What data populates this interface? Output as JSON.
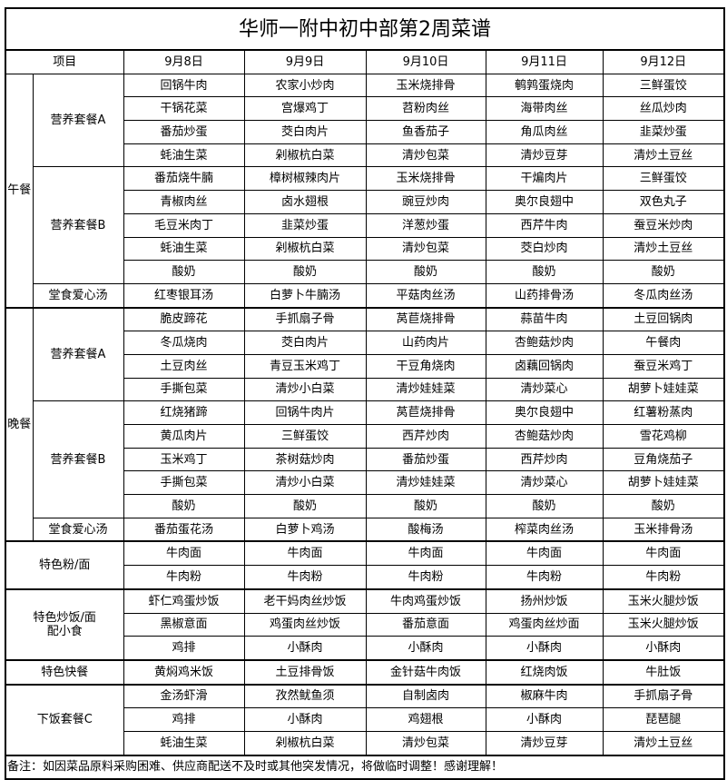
{
  "title": "华师一附中初中部第2周菜谱",
  "header": {
    "item": "项目",
    "dates": [
      "9月8日",
      "9月9日",
      "9月10日",
      "9月11日",
      "9月12日"
    ]
  },
  "meals": [
    {
      "label": "午餐",
      "groups": [
        {
          "label": "营养套餐A",
          "rows": [
            [
              "回锅牛肉",
              "农家小炒肉",
              "玉米烧排骨",
              "鹌鹑蛋烧肉",
              "三鲜蛋饺"
            ],
            [
              "干锅花菜",
              "宫爆鸡丁",
              "苕粉肉丝",
              "海带肉丝",
              "丝瓜炒肉"
            ],
            [
              "番茄炒蛋",
              "茭白肉片",
              "鱼香茄子",
              "角瓜肉丝",
              "韭菜炒蛋"
            ],
            [
              "蚝油生菜",
              "剁椒杭白菜",
              "清炒包菜",
              "清炒豆芽",
              "清炒土豆丝"
            ]
          ]
        },
        {
          "label": "营养套餐B",
          "rows": [
            [
              "番茄烧牛腩",
              "樟树椒辣肉片",
              "玉米烧排骨",
              "干煸肉片",
              "三鲜蛋饺"
            ],
            [
              "青椒肉丝",
              "卤水翅根",
              "豌豆炒肉",
              "奥尔良翅中",
              "双色丸子"
            ],
            [
              "毛豆米肉丁",
              "韭菜炒蛋",
              "洋葱炒蛋",
              "西芹牛肉",
              "蚕豆米炒肉"
            ],
            [
              "蚝油生菜",
              "剁椒杭白菜",
              "清炒包菜",
              "茭白炒肉",
              "清炒土豆丝"
            ],
            [
              "酸奶",
              "酸奶",
              "酸奶",
              "酸奶",
              "酸奶"
            ]
          ]
        },
        {
          "label": "堂食爱心汤",
          "rows": [
            [
              "红枣银耳汤",
              "白萝卜牛腩汤",
              "平菇肉丝汤",
              "山药排骨汤",
              "冬瓜肉丝汤"
            ]
          ]
        }
      ]
    },
    {
      "label": "晚餐",
      "groups": [
        {
          "label": "营养套餐A",
          "rows": [
            [
              "脆皮蹄花",
              "手抓扇子骨",
              "莴苣烧排骨",
              "蒜苗牛肉",
              "土豆回锅肉"
            ],
            [
              "冬瓜烧肉",
              "茭白肉片",
              "山药肉片",
              "杏鲍菇炒肉",
              "午餐肉"
            ],
            [
              "土豆肉丝",
              "青豆玉米鸡丁",
              "干豆角烧肉",
              "卤藕回锅肉",
              "蚕豆米鸡丁"
            ],
            [
              "手撕包菜",
              "清炒小白菜",
              "清炒娃娃菜",
              "清炒菜心",
              "胡萝卜娃娃菜"
            ]
          ]
        },
        {
          "label": "营养套餐B",
          "rows": [
            [
              "红烧猪蹄",
              "回锅牛肉片",
              "莴苣烧排骨",
              "奥尔良翅中",
              "红薯粉蒸肉"
            ],
            [
              "黄瓜肉片",
              "三鲜蛋饺",
              "西芹炒肉",
              "杏鲍菇炒肉",
              "雪花鸡柳"
            ],
            [
              "玉米鸡丁",
              "茶树菇炒肉",
              "番茄炒蛋",
              "西芹炒肉",
              "豆角烧茄子"
            ],
            [
              "手撕包菜",
              "清炒小白菜",
              "清炒娃娃菜",
              "清炒菜心",
              "胡萝卜娃娃菜"
            ],
            [
              "酸奶",
              "酸奶",
              "酸奶",
              "酸奶",
              "酸奶"
            ]
          ]
        },
        {
          "label": "堂食爱心汤",
          "rows": [
            [
              "番茄蛋花汤",
              "白萝卜鸡汤",
              "酸梅汤",
              "榨菜肉丝汤",
              "玉米排骨汤"
            ]
          ]
        }
      ]
    }
  ],
  "specials": [
    {
      "label": "特色粉/面",
      "rows": [
        [
          "牛肉面",
          "牛肉面",
          "牛肉面",
          "牛肉面",
          "牛肉面"
        ],
        [
          "牛肉粉",
          "牛肉粉",
          "牛肉粉",
          "牛肉粉",
          "牛肉粉"
        ]
      ]
    },
    {
      "label": "特色炒饭/面\n配小食",
      "rows": [
        [
          "虾仁鸡蛋炒饭",
          "老干妈肉丝炒饭",
          "牛肉鸡蛋炒饭",
          "扬州炒饭",
          "玉米火腿炒饭"
        ],
        [
          "黑椒意面",
          "鸡蛋肉丝炒饭",
          "番茄意面",
          "鸡蛋肉丝炒面",
          "玉米火腿炒饭"
        ],
        [
          "鸡排",
          "小酥肉",
          "小酥肉",
          "小酥肉",
          "小酥肉"
        ]
      ]
    },
    {
      "label": "特色快餐",
      "rows": [
        [
          "黄焖鸡米饭",
          "土豆排骨饭",
          "金针菇牛肉饭",
          "红烧肉饭",
          "牛肚饭"
        ]
      ]
    },
    {
      "label": "下饭套餐C",
      "rows": [
        [
          "金汤虾滑",
          "孜然鱿鱼须",
          "自制卤肉",
          "椒麻牛肉",
          "手抓扇子骨"
        ],
        [
          "鸡排",
          "小酥肉",
          "鸡翅根",
          "小酥肉",
          "琵琶腿"
        ],
        [
          "蚝油生菜",
          "剁椒杭白菜",
          "清炒包菜",
          "清炒豆芽",
          "清炒土豆丝"
        ]
      ]
    }
  ],
  "note": "备注：如因菜品原料采购困难、供应商配送不及时或其他突发情况，将做临时调整！感谢理解！"
}
